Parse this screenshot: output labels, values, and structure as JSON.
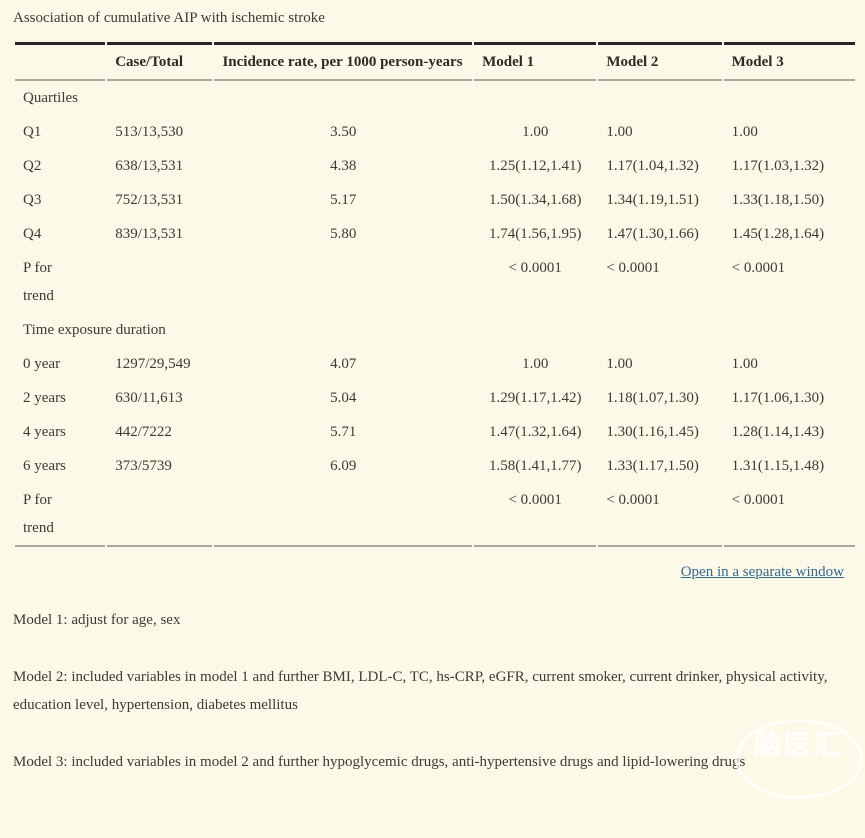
{
  "page": {
    "title": "Association of cumulative AIP with ischemic stroke",
    "open_link_label": "Open in a separate window",
    "watermark_text": "脑医汇",
    "watermark_dots": "· · · · · · ·"
  },
  "colors": {
    "background": "#fdf9e8",
    "text": "#3e3a34",
    "link_blue": "#35688e",
    "rule_dark": "#262626",
    "rule_gray": "#a9a9a2"
  },
  "table": {
    "headers": [
      "",
      "Case/Total",
      "Incidence rate, per 1000 person-years",
      "Model 1",
      "Model 2",
      "Model 3"
    ],
    "sections": [
      {
        "label": "Quartiles",
        "rows": [
          [
            "Q1",
            "513/13,530",
            "3.50",
            "1.00",
            "1.00",
            "1.00"
          ],
          [
            "Q2",
            "638/13,531",
            "4.38",
            "1.25(1.12,1.41)",
            "1.17(1.04,1.32)",
            "1.17(1.03,1.32)"
          ],
          [
            "Q3",
            "752/13,531",
            "5.17",
            "1.50(1.34,1.68)",
            "1.34(1.19,1.51)",
            "1.33(1.18,1.50)"
          ],
          [
            "Q4",
            "839/13,531",
            "5.80",
            "1.74(1.56,1.95)",
            "1.47(1.30,1.66)",
            "1.45(1.28,1.64)"
          ],
          [
            "P for trend",
            "",
            "",
            "< 0.0001",
            "< 0.0001",
            "< 0.0001"
          ]
        ]
      },
      {
        "label": "Time exposure duration",
        "rows": [
          [
            "0 year",
            "1297/29,549",
            "4.07",
            "1.00",
            "1.00",
            "1.00"
          ],
          [
            "2 years",
            "630/11,613",
            "5.04",
            "1.29(1.17,1.42)",
            "1.18(1.07,1.30)",
            "1.17(1.06,1.30)"
          ],
          [
            "4 years",
            "442/7222",
            "5.71",
            "1.47(1.32,1.64)",
            "1.30(1.16,1.45)",
            "1.28(1.14,1.43)"
          ],
          [
            "6 years",
            "373/5739",
            "6.09",
            "1.58(1.41,1.77)",
            "1.33(1.17,1.50)",
            "1.31(1.15,1.48)"
          ],
          [
            "P for trend",
            "",
            "",
            "< 0.0001",
            "< 0.0001",
            "< 0.0001"
          ]
        ]
      }
    ]
  },
  "footnotes": [
    "Model 1: adjust for age, sex",
    "Model 2: included variables in model 1 and further BMI, LDL-C, TC, hs-CRP, eGFR, current smoker, current drinker, physical activity, education level, hypertension, diabetes mellitus",
    "Model 3: included variables in model 2 and further hypoglycemic drugs, anti-hypertensive drugs and lipid-lowering drugs"
  ]
}
